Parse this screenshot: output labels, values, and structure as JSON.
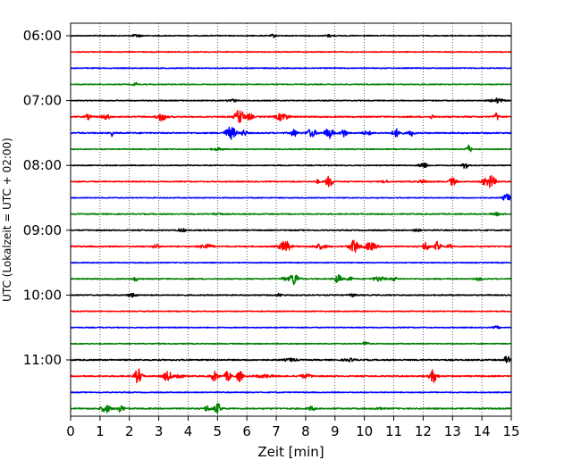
{
  "chart_data": {
    "type": "line",
    "title": "",
    "xlabel": "Zeit  [min]",
    "ylabel": "UTC (Lokalzeit = UTC + 02:00)",
    "xlim": [
      0,
      15
    ],
    "x_ticks": [
      "0",
      "1",
      "2",
      "3",
      "4",
      "5",
      "6",
      "7",
      "8",
      "9",
      "10",
      "11",
      "12",
      "13",
      "14",
      "15"
    ],
    "y_ticks": [
      "06:00",
      "07:00",
      "08:00",
      "09:00",
      "10:00",
      "11:00"
    ],
    "grid": "vertical dotted at each minute",
    "legend": "none",
    "series_colors": [
      "#000000",
      "#ff0000",
      "#0000ff",
      "#008000"
    ],
    "trace_interval_min": 15,
    "traces": [
      {
        "time": "06:00",
        "color": "#000000",
        "noise": 0.5,
        "events": [
          {
            "t": 2.25,
            "amp": 1.4,
            "w": 0.15
          },
          {
            "t": 6.9,
            "amp": 1.6,
            "w": 0.08
          },
          {
            "t": 8.8,
            "amp": 1.2,
            "w": 0.12
          }
        ]
      },
      {
        "time": "06:15",
        "color": "#ff0000",
        "noise": 0.5,
        "events": []
      },
      {
        "time": "06:30",
        "color": "#0000ff",
        "noise": 0.5,
        "events": []
      },
      {
        "time": "06:45",
        "color": "#008000",
        "noise": 0.5,
        "events": [
          {
            "t": 2.2,
            "amp": 2.0,
            "w": 0.08
          }
        ]
      },
      {
        "time": "07:00",
        "color": "#000000",
        "noise": 0.5,
        "events": [
          {
            "t": 5.5,
            "amp": 1.5,
            "w": 0.15
          },
          {
            "t": 14.5,
            "amp": 2.5,
            "w": 0.2
          }
        ]
      },
      {
        "time": "07:15",
        "color": "#ff0000",
        "noise": 0.7,
        "events": [
          {
            "t": 0.6,
            "amp": 2.5,
            "w": 0.1
          },
          {
            "t": 1.2,
            "amp": 2.5,
            "w": 0.15
          },
          {
            "t": 3.1,
            "amp": 4.5,
            "w": 0.15
          },
          {
            "t": 5.75,
            "amp": 8.0,
            "w": 0.15
          },
          {
            "t": 6.1,
            "amp": 3.5,
            "w": 0.1
          },
          {
            "t": 7.2,
            "amp": 4.0,
            "w": 0.2
          },
          {
            "t": 12.3,
            "amp": 2.0,
            "w": 0.06
          },
          {
            "t": 14.5,
            "amp": 4.0,
            "w": 0.08
          }
        ]
      },
      {
        "time": "07:30",
        "color": "#0000ff",
        "noise": 0.7,
        "events": [
          {
            "t": 1.4,
            "amp": 5.0,
            "w": 0.03
          },
          {
            "t": 5.45,
            "amp": 6.5,
            "w": 0.18
          },
          {
            "t": 5.9,
            "amp": 3.0,
            "w": 0.1
          },
          {
            "t": 7.6,
            "amp": 4.0,
            "w": 0.1
          },
          {
            "t": 8.2,
            "amp": 4.5,
            "w": 0.15
          },
          {
            "t": 8.8,
            "amp": 5.5,
            "w": 0.15
          },
          {
            "t": 9.3,
            "amp": 4.5,
            "w": 0.1
          },
          {
            "t": 10.1,
            "amp": 2.0,
            "w": 0.15
          },
          {
            "t": 11.1,
            "amp": 4.0,
            "w": 0.15
          },
          {
            "t": 11.6,
            "amp": 3.0,
            "w": 0.1
          }
        ]
      },
      {
        "time": "07:45",
        "color": "#008000",
        "noise": 0.5,
        "events": [
          {
            "t": 5.0,
            "amp": 1.2,
            "w": 0.2
          },
          {
            "t": 13.55,
            "amp": 4.0,
            "w": 0.1
          }
        ]
      },
      {
        "time": "08:00",
        "color": "#000000",
        "noise": 0.5,
        "events": [
          {
            "t": 12.0,
            "amp": 3.0,
            "w": 0.15
          },
          {
            "t": 13.45,
            "amp": 4.0,
            "w": 0.1
          }
        ]
      },
      {
        "time": "08:15",
        "color": "#ff0000",
        "noise": 0.6,
        "events": [
          {
            "t": 8.4,
            "amp": 2.0,
            "w": 0.08
          },
          {
            "t": 8.8,
            "amp": 6.0,
            "w": 0.12
          },
          {
            "t": 10.7,
            "amp": 2.0,
            "w": 0.08
          },
          {
            "t": 12.0,
            "amp": 1.5,
            "w": 0.15
          },
          {
            "t": 13.0,
            "amp": 4.0,
            "w": 0.12
          },
          {
            "t": 14.3,
            "amp": 7.0,
            "w": 0.15
          },
          {
            "t": 14.05,
            "amp": 3.0,
            "w": 0.08
          }
        ]
      },
      {
        "time": "08:30",
        "color": "#0000ff",
        "noise": 0.5,
        "events": [
          {
            "t": 14.85,
            "amp": 4.5,
            "w": 0.12
          }
        ]
      },
      {
        "time": "08:45",
        "color": "#008000",
        "noise": 0.6,
        "events": [
          {
            "t": 5.0,
            "amp": 1.3,
            "w": 0.15
          },
          {
            "t": 14.5,
            "amp": 1.5,
            "w": 0.15
          }
        ]
      },
      {
        "time": "09:00",
        "color": "#000000",
        "noise": 0.6,
        "events": [
          {
            "t": 3.8,
            "amp": 1.5,
            "w": 0.15
          },
          {
            "t": 11.8,
            "amp": 1.5,
            "w": 0.1
          }
        ]
      },
      {
        "time": "09:15",
        "color": "#ff0000",
        "noise": 0.7,
        "events": [
          {
            "t": 2.9,
            "amp": 2.5,
            "w": 0.1
          },
          {
            "t": 4.6,
            "amp": 2.5,
            "w": 0.2
          },
          {
            "t": 7.3,
            "amp": 6.0,
            "w": 0.18
          },
          {
            "t": 8.5,
            "amp": 2.5,
            "w": 0.2
          },
          {
            "t": 9.65,
            "amp": 7.0,
            "w": 0.15
          },
          {
            "t": 10.2,
            "amp": 4.0,
            "w": 0.2
          },
          {
            "t": 12.1,
            "amp": 5.0,
            "w": 0.1
          },
          {
            "t": 12.5,
            "amp": 5.5,
            "w": 0.1
          },
          {
            "t": 12.9,
            "amp": 2.0,
            "w": 0.08
          }
        ]
      },
      {
        "time": "09:30",
        "color": "#0000ff",
        "noise": 0.5,
        "events": []
      },
      {
        "time": "09:45",
        "color": "#008000",
        "noise": 0.6,
        "events": [
          {
            "t": 2.2,
            "amp": 2.0,
            "w": 0.1
          },
          {
            "t": 7.6,
            "amp": 6.5,
            "w": 0.15
          },
          {
            "t": 7.25,
            "amp": 2.0,
            "w": 0.08
          },
          {
            "t": 9.1,
            "amp": 4.5,
            "w": 0.12
          },
          {
            "t": 9.5,
            "amp": 2.0,
            "w": 0.1
          },
          {
            "t": 10.5,
            "amp": 2.5,
            "w": 0.2
          },
          {
            "t": 11.0,
            "amp": 2.0,
            "w": 0.1
          },
          {
            "t": 13.9,
            "amp": 2.0,
            "w": 0.08
          }
        ]
      },
      {
        "time": "10:00",
        "color": "#000000",
        "noise": 0.6,
        "events": [
          {
            "t": 2.1,
            "amp": 2.0,
            "w": 0.15
          },
          {
            "t": 7.1,
            "amp": 1.5,
            "w": 0.1
          },
          {
            "t": 9.6,
            "amp": 1.5,
            "w": 0.1
          }
        ]
      },
      {
        "time": "10:15",
        "color": "#ff0000",
        "noise": 0.5,
        "events": []
      },
      {
        "time": "10:30",
        "color": "#0000ff",
        "noise": 0.5,
        "events": [
          {
            "t": 14.5,
            "amp": 1.5,
            "w": 0.1
          }
        ]
      },
      {
        "time": "10:45",
        "color": "#008000",
        "noise": 0.5,
        "events": [
          {
            "t": 10.05,
            "amp": 3.5,
            "w": 0.08
          }
        ]
      },
      {
        "time": "11:00",
        "color": "#000000",
        "noise": 0.7,
        "events": [
          {
            "t": 7.5,
            "amp": 1.5,
            "w": 0.2
          },
          {
            "t": 9.5,
            "amp": 1.3,
            "w": 0.2
          },
          {
            "t": 14.85,
            "amp": 4.0,
            "w": 0.1
          }
        ]
      },
      {
        "time": "11:15",
        "color": "#ff0000",
        "noise": 0.7,
        "events": [
          {
            "t": 2.3,
            "amp": 8.0,
            "w": 0.12
          },
          {
            "t": 3.3,
            "amp": 5.0,
            "w": 0.15
          },
          {
            "t": 3.7,
            "amp": 4.0,
            "w": 0.1
          },
          {
            "t": 4.9,
            "amp": 5.0,
            "w": 0.12
          },
          {
            "t": 5.35,
            "amp": 5.5,
            "w": 0.1
          },
          {
            "t": 5.75,
            "amp": 6.0,
            "w": 0.1
          },
          {
            "t": 6.6,
            "amp": 1.5,
            "w": 0.3
          },
          {
            "t": 8.0,
            "amp": 2.0,
            "w": 0.2
          },
          {
            "t": 12.35,
            "amp": 7.0,
            "w": 0.12
          }
        ]
      },
      {
        "time": "11:30",
        "color": "#0000ff",
        "noise": 0.5,
        "events": []
      },
      {
        "time": "11:45",
        "color": "#008000",
        "noise": 0.7,
        "events": [
          {
            "t": 1.2,
            "amp": 4.5,
            "w": 0.15
          },
          {
            "t": 1.7,
            "amp": 3.5,
            "w": 0.12
          },
          {
            "t": 4.65,
            "amp": 3.0,
            "w": 0.1
          },
          {
            "t": 5.0,
            "amp": 5.5,
            "w": 0.12
          },
          {
            "t": 8.2,
            "amp": 2.5,
            "w": 0.1
          },
          {
            "t": 10.5,
            "amp": 1.5,
            "w": 0.1
          }
        ]
      }
    ]
  }
}
